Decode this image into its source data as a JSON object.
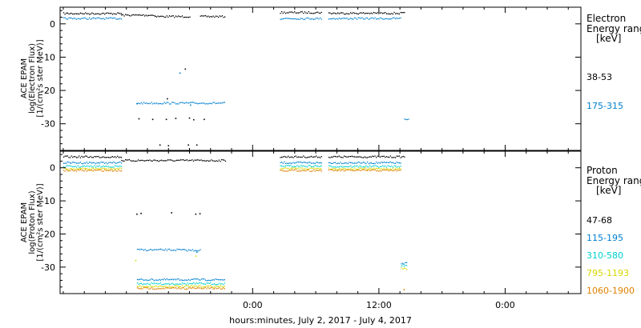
{
  "chart_data": {
    "type": "scatter",
    "xlabel": "hours:minutes, July  2, 2017 - July  4, 2017",
    "x_ticks": [
      "0:00",
      "12:00",
      "0:00"
    ],
    "panels": [
      {
        "ylabel_lines": [
          "ACE EPAM",
          "log(Electron Flux)",
          "[1/(cm²s ster MeV)]"
        ],
        "ylim": [
          -38,
          5
        ],
        "y_ticks": [
          0,
          -10,
          -20,
          -30
        ],
        "legend_title_lines": [
          "Electron",
          "Energy ranges",
          "[keV]"
        ],
        "series": [
          {
            "name": "38-53",
            "color": "#000000",
            "segments": [
              {
                "x": [
                  -18,
                  -12.5
                ],
                "y": 3.1
              },
              {
                "x": [
                  -12.5,
                  -9.3
                ],
                "y": 2.6
              },
              {
                "x": [
                  -9.3,
                  -6
                ],
                "y": 2.2
              },
              {
                "x": [
                  -5,
                  -2.6
                ],
                "y": 2.2
              },
              {
                "x": [
                  2.6,
                  6.6
                ],
                "y": 3.4
              },
              {
                "x": [
                  7.2,
                  14.4
                ],
                "y": 3.2
              }
            ],
            "points": [
              [
                -10.8,
                -28.5
              ],
              [
                -9.5,
                -28.7
              ],
              [
                -8.8,
                -36.4
              ],
              [
                -8.2,
                -28.7
              ],
              [
                -8.0,
                -36.6
              ],
              [
                -7.3,
                -28.4
              ],
              [
                -6.4,
                -13.6
              ],
              [
                -6.0,
                -28.3
              ],
              [
                -6.1,
                -36.4
              ],
              [
                -5.6,
                -28.8
              ],
              [
                -5.3,
                -36.4
              ],
              [
                -4.6,
                -28.7
              ],
              [
                -8.1,
                -22.5
              ]
            ]
          },
          {
            "name": "175-315",
            "color": "#0080d0",
            "segments": [
              {
                "x": [
                  -18,
                  -12.5
                ],
                "y": 1.6
              },
              {
                "x": [
                  2.6,
                  6.6
                ],
                "y": 1.6
              },
              {
                "x": [
                  7.2,
                  14.1
                ],
                "y": 1.6
              },
              {
                "x": [
                  -11,
                  -2.6
                ],
                "y": -23.8
              },
              {
                "x": [
                  14.4,
                  14.8
                ],
                "y": -28.8
              }
            ],
            "points": [
              [
                -6.9,
                -14.8
              ],
              [
                -5.9,
                -24.4
              ],
              [
                -11.0,
                -24.0
              ]
            ]
          }
        ]
      },
      {
        "ylabel_lines": [
          "ACE EPAM",
          "log(Proton Flux)",
          "[1/(cm²s ster MeV)]"
        ],
        "ylim": [
          -38,
          5
        ],
        "y_ticks": [
          0,
          -10,
          -20,
          -30
        ],
        "legend_title_lines": [
          "Proton",
          "Energy ranges",
          "[keV]"
        ],
        "series": [
          {
            "name": "47-68",
            "color": "#000000",
            "segments": [
              {
                "x": [
                  -18,
                  -12.5
                ],
                "y": 3.3
              },
              {
                "x": [
                  -12.5,
                  -2.6
                ],
                "y": 2.2
              },
              {
                "x": [
                  2.6,
                  6.6
                ],
                "y": 3.3
              },
              {
                "x": [
                  7.2,
                  14.4
                ],
                "y": 3.3
              }
            ],
            "points": [
              [
                -11.0,
                -14.0
              ],
              [
                -10.6,
                -13.8
              ],
              [
                -7.7,
                -13.6
              ],
              [
                -5.4,
                -14.0
              ],
              [
                -5.0,
                -13.9
              ]
            ]
          },
          {
            "name": "115-195",
            "color": "#0080d0",
            "segments": [
              {
                "x": [
                  -18,
                  -12.5
                ],
                "y": 1.5
              },
              {
                "x": [
                  2.6,
                  6.6
                ],
                "y": 1.5
              },
              {
                "x": [
                  7.2,
                  14.1
                ],
                "y": 1.5
              },
              {
                "x": [
                  -11,
                  -6.6
                ],
                "y": -24.8
              },
              {
                "x": [
                  -6.6,
                  -4.9
                ],
                "y": -24.9
              },
              {
                "x": [
                  -11,
                  -2.6
                ],
                "y": -33.8
              },
              {
                "x": [
                  14.1,
                  14.6
                ],
                "y": -28.9
              }
            ],
            "points": [
              [
                -5.3,
                -25.5
              ]
            ]
          },
          {
            "name": "310-580",
            "color": "#00d0d0",
            "segments": [
              {
                "x": [
                  -18,
                  -12.5
                ],
                "y": 0.4
              },
              {
                "x": [
                  2.6,
                  6.6
                ],
                "y": 0.5
              },
              {
                "x": [
                  7.2,
                  14.1
                ],
                "y": 0.4
              },
              {
                "x": [
                  -11,
                  -2.6
                ],
                "y": -35.0
              },
              {
                "x": [
                  14.1,
                  14.6
                ],
                "y": -29.5
              }
            ],
            "points": []
          },
          {
            "name": "795-1193",
            "color": "#d8d800",
            "segments": [
              {
                "x": [
                  -18,
                  -12.5
                ],
                "y": -0.3
              },
              {
                "x": [
                  2.6,
                  6.6
                ],
                "y": -0.2
              },
              {
                "x": [
                  7.2,
                  14.1
                ],
                "y": -0.3
              },
              {
                "x": [
                  -11,
                  -2.6
                ],
                "y": -35.8
              },
              {
                "x": [
                  14.1,
                  14.6
                ],
                "y": -30.5
              }
            ],
            "points": [
              [
                -11.1,
                -28.0
              ],
              [
                -5.4,
                -26.7
              ]
            ]
          },
          {
            "name": "1060-1900",
            "color": "#e08000",
            "segments": [
              {
                "x": [
                  -18,
                  -12.5
                ],
                "y": -0.8
              },
              {
                "x": [
                  2.6,
                  6.6
                ],
                "y": -0.8
              },
              {
                "x": [
                  7.2,
                  14.1
                ],
                "y": -0.8
              },
              {
                "x": [
                  -11,
                  -2.6
                ],
                "y": -36.4
              }
            ],
            "points": [
              [
                14.4,
                -36.8
              ]
            ]
          }
        ]
      }
    ]
  }
}
